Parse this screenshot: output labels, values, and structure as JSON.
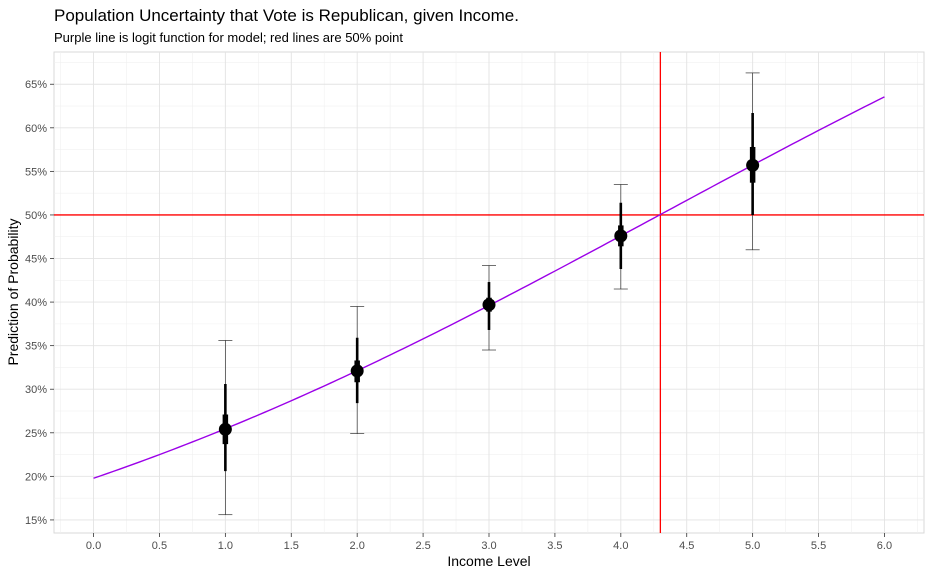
{
  "chart_data": {
    "type": "scatter",
    "title": "Population Uncertainty that Vote is Republican, given Income.",
    "subtitle": "Purple line is logit function for model; red lines are 50% point",
    "xlabel": "Income Level",
    "ylabel": "Prediction of Probability",
    "xlim": [
      -0.3,
      6.3
    ],
    "ylim": [
      0.135,
      0.687
    ],
    "x_ticks": [
      0.0,
      0.5,
      1.0,
      1.5,
      2.0,
      2.5,
      3.0,
      3.5,
      4.0,
      4.5,
      5.0,
      5.5,
      6.0
    ],
    "x_tick_labels": [
      "0.0",
      "0.5",
      "1.0",
      "1.5",
      "2.0",
      "2.5",
      "3.0",
      "3.5",
      "4.0",
      "4.5",
      "5.0",
      "5.5",
      "6.0"
    ],
    "y_ticks": [
      0.15,
      0.2,
      0.25,
      0.3,
      0.35,
      0.4,
      0.45,
      0.5,
      0.55,
      0.6,
      0.65
    ],
    "y_tick_labels": [
      "15%",
      "20%",
      "25%",
      "30%",
      "35%",
      "40%",
      "45%",
      "50%",
      "55%",
      "60%",
      "65%"
    ],
    "grid": true,
    "points": [
      {
        "x": 1,
        "median": 0.254,
        "q25": 0.237,
        "q75": 0.271,
        "q05": 0.206,
        "q95": 0.306,
        "min": 0.156,
        "max": 0.356
      },
      {
        "x": 2,
        "median": 0.321,
        "q25": 0.308,
        "q75": 0.333,
        "q05": 0.284,
        "q95": 0.359,
        "min": 0.249,
        "max": 0.395
      },
      {
        "x": 3,
        "median": 0.397,
        "q25": 0.389,
        "q75": 0.405,
        "q05": 0.368,
        "q95": 0.423,
        "min": 0.345,
        "max": 0.442
      },
      {
        "x": 4,
        "median": 0.476,
        "q25": 0.464,
        "q75": 0.488,
        "q05": 0.438,
        "q95": 0.514,
        "min": 0.415,
        "max": 0.535
      },
      {
        "x": 5,
        "median": 0.557,
        "q25": 0.537,
        "q75": 0.578,
        "q05": 0.5,
        "q95": 0.617,
        "min": 0.46,
        "max": 0.663
      }
    ],
    "logit_curve": {
      "x_range": [
        0,
        6
      ],
      "intercept": -1.4,
      "slope": 0.326,
      "color": "#9b00e8"
    },
    "reference_lines": {
      "y": 0.5,
      "x": 4.3,
      "color": "#ff0000"
    },
    "point_color": "#000000"
  }
}
